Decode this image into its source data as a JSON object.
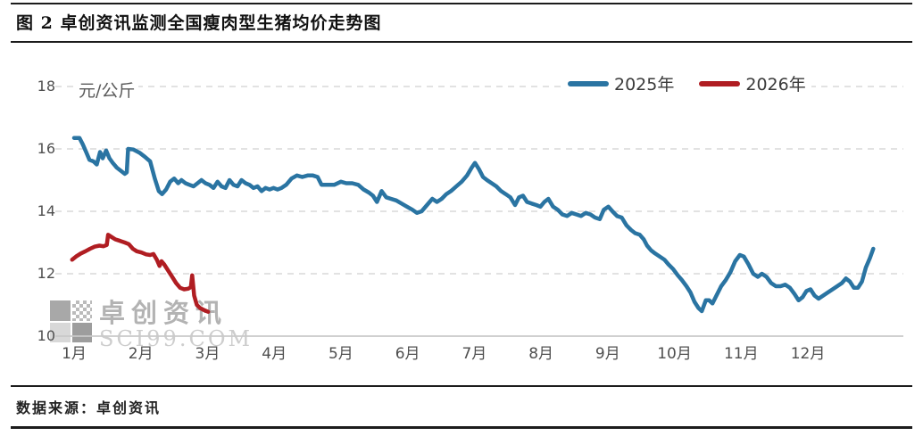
{
  "header": {
    "title": "图 2 卓创资讯监测全国瘦肉型生猪均价走势图"
  },
  "footer": {
    "source": "数据来源：卓创资讯"
  },
  "watermark": {
    "name": "卓创资讯",
    "site": "SCI99.COM"
  },
  "chart_data": {
    "type": "line",
    "title": "图 2 卓创资讯监测全国瘦肉型生猪均价走势图",
    "ylabel": "元/公斤",
    "unit": "元/公斤",
    "xlabel": "",
    "grid": "horizontal-dashed",
    "legend_position": "top-right",
    "x_axis": {
      "labels": [
        "1月",
        "2月",
        "3月",
        "4月",
        "5月",
        "6月",
        "7月",
        "8月",
        "9月",
        "10月",
        "11月",
        "12月"
      ],
      "range": [
        1,
        13.05
      ]
    },
    "y_axis": {
      "ticks": [
        10,
        12,
        14,
        16,
        18
      ],
      "range": [
        10,
        18
      ]
    },
    "legend": [
      {
        "label": "2025年",
        "color": "#2a74a2"
      },
      {
        "label": "2026年",
        "color": "#b01d22"
      }
    ],
    "series": [
      {
        "name": "2025年",
        "color": "#2a74a2",
        "points": [
          [
            1.0,
            16.35
          ],
          [
            1.08,
            16.35
          ],
          [
            1.13,
            16.15
          ],
          [
            1.18,
            15.9
          ],
          [
            1.23,
            15.65
          ],
          [
            1.29,
            15.6
          ],
          [
            1.34,
            15.5
          ],
          [
            1.39,
            15.9
          ],
          [
            1.43,
            15.7
          ],
          [
            1.48,
            15.95
          ],
          [
            1.53,
            15.7
          ],
          [
            1.58,
            15.55
          ],
          [
            1.64,
            15.4
          ],
          [
            1.7,
            15.3
          ],
          [
            1.76,
            15.2
          ],
          [
            1.79,
            15.25
          ],
          [
            1.81,
            16.0
          ],
          [
            1.89,
            15.98
          ],
          [
            1.98,
            15.88
          ],
          [
            2.06,
            15.75
          ],
          [
            2.14,
            15.6
          ],
          [
            2.21,
            15.05
          ],
          [
            2.27,
            14.65
          ],
          [
            2.32,
            14.55
          ],
          [
            2.38,
            14.7
          ],
          [
            2.44,
            14.95
          ],
          [
            2.5,
            15.05
          ],
          [
            2.56,
            14.9
          ],
          [
            2.61,
            15.0
          ],
          [
            2.67,
            14.9
          ],
          [
            2.73,
            14.85
          ],
          [
            2.79,
            14.8
          ],
          [
            2.85,
            14.9
          ],
          [
            2.91,
            15.0
          ],
          [
            2.97,
            14.9
          ],
          [
            3.03,
            14.85
          ],
          [
            3.09,
            14.75
          ],
          [
            3.15,
            14.95
          ],
          [
            3.21,
            14.8
          ],
          [
            3.27,
            14.75
          ],
          [
            3.33,
            15.0
          ],
          [
            3.39,
            14.85
          ],
          [
            3.45,
            14.8
          ],
          [
            3.51,
            15.0
          ],
          [
            3.57,
            14.9
          ],
          [
            3.63,
            14.85
          ],
          [
            3.69,
            14.75
          ],
          [
            3.75,
            14.8
          ],
          [
            3.81,
            14.65
          ],
          [
            3.87,
            14.75
          ],
          [
            3.93,
            14.7
          ],
          [
            3.99,
            14.75
          ],
          [
            4.05,
            14.7
          ],
          [
            4.11,
            14.75
          ],
          [
            4.18,
            14.85
          ],
          [
            4.26,
            15.05
          ],
          [
            4.34,
            15.15
          ],
          [
            4.42,
            15.1
          ],
          [
            4.5,
            15.15
          ],
          [
            4.58,
            15.15
          ],
          [
            4.65,
            15.1
          ],
          [
            4.71,
            14.85
          ],
          [
            4.8,
            14.85
          ],
          [
            4.9,
            14.85
          ],
          [
            5.0,
            14.95
          ],
          [
            5.08,
            14.9
          ],
          [
            5.17,
            14.9
          ],
          [
            5.26,
            14.85
          ],
          [
            5.34,
            14.7
          ],
          [
            5.42,
            14.6
          ],
          [
            5.48,
            14.5
          ],
          [
            5.54,
            14.3
          ],
          [
            5.61,
            14.65
          ],
          [
            5.68,
            14.45
          ],
          [
            5.75,
            14.4
          ],
          [
            5.83,
            14.35
          ],
          [
            5.91,
            14.25
          ],
          [
            5.99,
            14.15
          ],
          [
            6.07,
            14.05
          ],
          [
            6.14,
            13.95
          ],
          [
            6.21,
            14.0
          ],
          [
            6.29,
            14.2
          ],
          [
            6.37,
            14.4
          ],
          [
            6.44,
            14.3
          ],
          [
            6.51,
            14.4
          ],
          [
            6.58,
            14.55
          ],
          [
            6.65,
            14.65
          ],
          [
            6.73,
            14.8
          ],
          [
            6.81,
            14.95
          ],
          [
            6.89,
            15.15
          ],
          [
            6.96,
            15.4
          ],
          [
            7.01,
            15.55
          ],
          [
            7.07,
            15.35
          ],
          [
            7.13,
            15.1
          ],
          [
            7.19,
            15.0
          ],
          [
            7.26,
            14.9
          ],
          [
            7.33,
            14.8
          ],
          [
            7.4,
            14.65
          ],
          [
            7.47,
            14.55
          ],
          [
            7.54,
            14.45
          ],
          [
            7.61,
            14.2
          ],
          [
            7.67,
            14.45
          ],
          [
            7.73,
            14.5
          ],
          [
            7.79,
            14.3
          ],
          [
            7.86,
            14.25
          ],
          [
            7.93,
            14.2
          ],
          [
            7.99,
            14.15
          ],
          [
            8.05,
            14.3
          ],
          [
            8.11,
            14.4
          ],
          [
            8.18,
            14.15
          ],
          [
            8.25,
            14.05
          ],
          [
            8.32,
            13.9
          ],
          [
            8.39,
            13.85
          ],
          [
            8.46,
            13.95
          ],
          [
            8.53,
            13.9
          ],
          [
            8.6,
            13.85
          ],
          [
            8.67,
            13.95
          ],
          [
            8.74,
            13.9
          ],
          [
            8.81,
            13.8
          ],
          [
            8.88,
            13.75
          ],
          [
            8.94,
            14.05
          ],
          [
            9.01,
            14.15
          ],
          [
            9.07,
            14.0
          ],
          [
            9.14,
            13.85
          ],
          [
            9.21,
            13.8
          ],
          [
            9.28,
            13.55
          ],
          [
            9.35,
            13.4
          ],
          [
            9.41,
            13.3
          ],
          [
            9.48,
            13.25
          ],
          [
            9.54,
            13.1
          ],
          [
            9.59,
            12.9
          ],
          [
            9.65,
            12.75
          ],
          [
            9.71,
            12.65
          ],
          [
            9.78,
            12.55
          ],
          [
            9.85,
            12.45
          ],
          [
            9.91,
            12.3
          ],
          [
            9.98,
            12.15
          ],
          [
            10.05,
            11.95
          ],
          [
            10.11,
            11.8
          ],
          [
            10.18,
            11.6
          ],
          [
            10.24,
            11.4
          ],
          [
            10.3,
            11.1
          ],
          [
            10.36,
            10.9
          ],
          [
            10.41,
            10.8
          ],
          [
            10.47,
            11.15
          ],
          [
            10.52,
            11.15
          ],
          [
            10.57,
            11.05
          ],
          [
            10.63,
            11.3
          ],
          [
            10.7,
            11.6
          ],
          [
            10.77,
            11.8
          ],
          [
            10.84,
            12.05
          ],
          [
            10.91,
            12.4
          ],
          [
            10.98,
            12.6
          ],
          [
            11.04,
            12.55
          ],
          [
            11.11,
            12.3
          ],
          [
            11.18,
            12.0
          ],
          [
            11.25,
            11.9
          ],
          [
            11.31,
            12.0
          ],
          [
            11.38,
            11.9
          ],
          [
            11.45,
            11.7
          ],
          [
            11.52,
            11.6
          ],
          [
            11.59,
            11.6
          ],
          [
            11.66,
            11.65
          ],
          [
            11.73,
            11.55
          ],
          [
            11.8,
            11.35
          ],
          [
            11.86,
            11.15
          ],
          [
            11.92,
            11.25
          ],
          [
            11.98,
            11.45
          ],
          [
            12.04,
            11.5
          ],
          [
            12.1,
            11.3
          ],
          [
            12.16,
            11.2
          ],
          [
            12.23,
            11.3
          ],
          [
            12.3,
            11.4
          ],
          [
            12.37,
            11.5
          ],
          [
            12.44,
            11.6
          ],
          [
            12.51,
            11.7
          ],
          [
            12.57,
            11.85
          ],
          [
            12.63,
            11.75
          ],
          [
            12.69,
            11.55
          ],
          [
            12.75,
            11.55
          ],
          [
            12.81,
            11.75
          ],
          [
            12.87,
            12.2
          ],
          [
            12.93,
            12.5
          ],
          [
            12.98,
            12.8
          ]
        ]
      },
      {
        "name": "2026年",
        "color": "#b01d22",
        "points": [
          [
            0.97,
            12.45
          ],
          [
            1.03,
            12.55
          ],
          [
            1.1,
            12.65
          ],
          [
            1.17,
            12.72
          ],
          [
            1.24,
            12.8
          ],
          [
            1.31,
            12.87
          ],
          [
            1.38,
            12.9
          ],
          [
            1.44,
            12.88
          ],
          [
            1.49,
            12.92
          ],
          [
            1.51,
            13.25
          ],
          [
            1.56,
            13.18
          ],
          [
            1.62,
            13.1
          ],
          [
            1.69,
            13.05
          ],
          [
            1.76,
            13.0
          ],
          [
            1.82,
            12.95
          ],
          [
            1.88,
            12.8
          ],
          [
            1.94,
            12.72
          ],
          [
            2.01,
            12.68
          ],
          [
            2.08,
            12.62
          ],
          [
            2.14,
            12.6
          ],
          [
            2.19,
            12.63
          ],
          [
            2.24,
            12.45
          ],
          [
            2.28,
            12.25
          ],
          [
            2.31,
            12.4
          ],
          [
            2.35,
            12.3
          ],
          [
            2.41,
            12.1
          ],
          [
            2.47,
            11.9
          ],
          [
            2.53,
            11.7
          ],
          [
            2.59,
            11.55
          ],
          [
            2.65,
            11.5
          ],
          [
            2.71,
            11.52
          ],
          [
            2.75,
            11.57
          ],
          [
            2.77,
            11.95
          ],
          [
            2.8,
            11.3
          ],
          [
            2.84,
            11.0
          ],
          [
            2.89,
            10.9
          ],
          [
            2.95,
            10.83
          ],
          [
            3.01,
            10.78
          ]
        ]
      }
    ]
  }
}
